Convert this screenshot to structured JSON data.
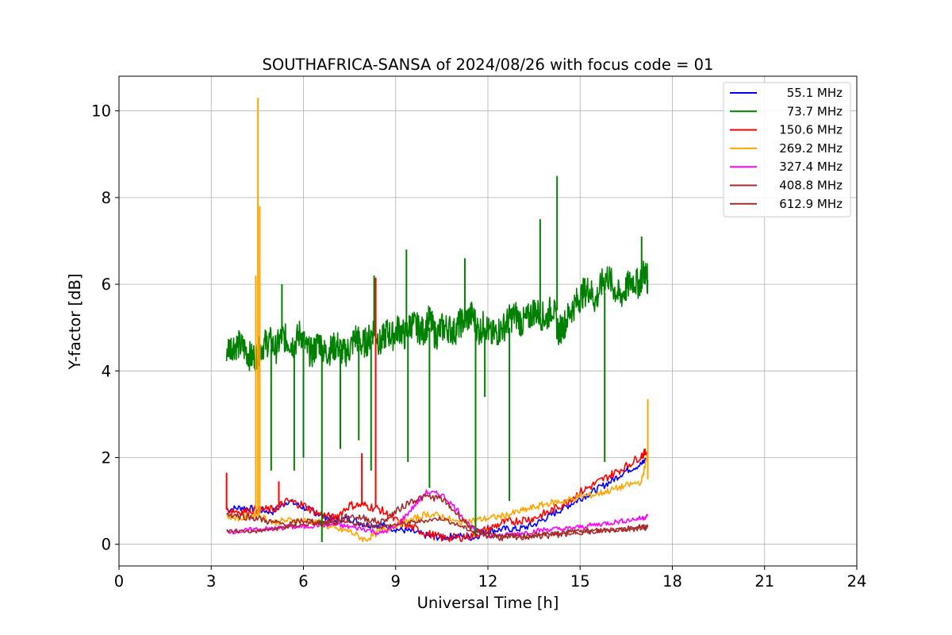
{
  "chart_data": {
    "type": "line",
    "title": "SOUTHAFRICA-SANSA of 2024/08/26 with focus code = 01",
    "xlabel": "Universal Time [h]",
    "ylabel": "Y-factor [dB]",
    "xlim": [
      0,
      24
    ],
    "ylim": [
      -0.5,
      10.8
    ],
    "xticks": [
      0,
      3,
      6,
      9,
      12,
      15,
      18,
      21,
      24
    ],
    "yticks": [
      0,
      2,
      4,
      6,
      8,
      10
    ],
    "grid": true,
    "legend_position": "top-right",
    "series": [
      {
        "name": "55.1 MHz",
        "color": "#0000ff",
        "x": [
          3.5,
          4.0,
          4.5,
          5.0,
          5.5,
          6.0,
          6.5,
          7.0,
          7.5,
          8.0,
          8.5,
          9.0,
          9.5,
          10.0,
          10.5,
          11.0,
          11.5,
          12.0,
          12.5,
          13.0,
          13.5,
          14.0,
          14.5,
          15.0,
          15.5,
          16.0,
          16.5,
          17.0,
          17.2
        ],
        "y": [
          0.8,
          0.85,
          0.8,
          0.75,
          1.0,
          0.85,
          0.7,
          0.55,
          0.6,
          0.45,
          0.45,
          0.35,
          0.3,
          0.2,
          0.15,
          0.2,
          0.15,
          0.3,
          0.35,
          0.35,
          0.45,
          0.65,
          0.85,
          1.05,
          1.25,
          1.45,
          1.7,
          1.85,
          2.0
        ]
      },
      {
        "name": "73.7 MHz",
        "color": "#008000",
        "x": [
          3.5,
          3.7,
          3.9,
          4.1,
          4.3,
          4.5,
          4.7,
          4.9,
          5.1,
          5.3,
          5.5,
          5.7,
          5.9,
          6.1,
          6.3,
          6.5,
          6.7,
          6.9,
          7.1,
          7.3,
          7.5,
          7.7,
          7.9,
          8.1,
          8.3,
          8.5,
          8.7,
          8.9,
          9.1,
          9.3,
          9.5,
          9.7,
          9.9,
          10.1,
          10.3,
          10.5,
          10.7,
          10.9,
          11.1,
          11.3,
          11.5,
          11.7,
          11.9,
          12.1,
          12.3,
          12.5,
          12.7,
          12.9,
          13.1,
          13.3,
          13.5,
          13.7,
          13.9,
          14.1,
          14.3,
          14.5,
          14.7,
          14.9,
          15.1,
          15.3,
          15.5,
          15.7,
          15.9,
          16.1,
          16.3,
          16.5,
          16.7,
          16.9,
          17.1,
          17.2
        ],
        "y": [
          4.5,
          4.6,
          4.6,
          4.5,
          4.3,
          4.4,
          4.6,
          4.7,
          4.5,
          4.8,
          4.7,
          4.6,
          4.9,
          4.5,
          4.4,
          4.7,
          4.4,
          4.5,
          4.6,
          4.4,
          4.5,
          4.8,
          4.6,
          4.7,
          5.0,
          4.6,
          4.9,
          4.8,
          5.0,
          4.8,
          5.1,
          5.0,
          4.9,
          5.2,
          4.8,
          5.0,
          5.0,
          4.9,
          5.1,
          5.2,
          5.3,
          4.9,
          5.1,
          4.8,
          4.9,
          5.0,
          5.2,
          5.3,
          5.1,
          5.2,
          5.4,
          5.3,
          5.2,
          5.5,
          4.9,
          5.1,
          5.4,
          5.6,
          5.8,
          5.9,
          5.6,
          6.0,
          6.2,
          5.9,
          5.7,
          5.9,
          6.1,
          6.0,
          6.3,
          6.1
        ]
      },
      {
        "name": "150.6 MHz",
        "color": "#ff0000",
        "x": [
          3.5,
          4.0,
          4.5,
          5.0,
          5.5,
          6.0,
          6.5,
          7.0,
          7.5,
          8.0,
          8.5,
          9.0,
          9.5,
          10.0,
          10.5,
          11.0,
          11.5,
          12.0,
          12.5,
          13.0,
          13.5,
          14.0,
          14.5,
          15.0,
          15.5,
          16.0,
          16.5,
          17.0,
          17.2
        ],
        "y": [
          0.8,
          0.75,
          0.8,
          0.8,
          1.0,
          0.9,
          0.7,
          0.6,
          0.9,
          0.9,
          0.8,
          0.55,
          0.4,
          0.25,
          0.15,
          0.15,
          0.2,
          0.35,
          0.5,
          0.55,
          0.6,
          0.75,
          0.95,
          1.2,
          1.4,
          1.6,
          1.8,
          2.05,
          2.15
        ]
      },
      {
        "name": "269.2 MHz",
        "color": "#ffa500",
        "x": [
          3.5,
          4.0,
          4.5,
          5.0,
          5.5,
          6.0,
          6.5,
          7.0,
          7.5,
          8.0,
          8.5,
          9.0,
          9.5,
          10.0,
          10.5,
          11.0,
          11.5,
          12.0,
          12.5,
          13.0,
          13.5,
          14.0,
          14.5,
          15.0,
          15.5,
          16.0,
          16.5,
          17.0,
          17.2
        ],
        "y": [
          0.65,
          0.6,
          0.7,
          0.5,
          0.55,
          0.55,
          0.5,
          0.35,
          0.3,
          0.1,
          0.3,
          0.45,
          0.55,
          0.7,
          0.65,
          0.5,
          0.55,
          0.6,
          0.65,
          0.75,
          0.85,
          0.95,
          1.0,
          1.1,
          1.15,
          1.25,
          1.35,
          1.45,
          2.1
        ]
      },
      {
        "name": "327.4 MHz",
        "color": "#ff00ff",
        "x": [
          3.5,
          4.0,
          4.5,
          5.0,
          5.5,
          6.0,
          6.5,
          7.0,
          7.5,
          8.0,
          8.5,
          9.0,
          9.5,
          10.0,
          10.5,
          11.0,
          11.5,
          12.0,
          12.5,
          13.0,
          13.5,
          14.0,
          14.5,
          15.0,
          15.5,
          16.0,
          16.5,
          17.0,
          17.2
        ],
        "y": [
          0.3,
          0.3,
          0.35,
          0.35,
          0.4,
          0.4,
          0.45,
          0.45,
          0.4,
          0.35,
          0.25,
          0.4,
          0.8,
          1.2,
          1.15,
          0.8,
          0.35,
          0.2,
          0.2,
          0.25,
          0.3,
          0.35,
          0.35,
          0.4,
          0.45,
          0.5,
          0.55,
          0.6,
          0.65
        ]
      },
      {
        "name": "408.8 MHz",
        "color": "#a52a2a",
        "x": [
          3.5,
          4.0,
          4.5,
          5.0,
          5.5,
          6.0,
          6.5,
          7.0,
          7.5,
          8.0,
          8.5,
          9.0,
          9.5,
          10.0,
          10.5,
          11.0,
          11.5,
          12.0,
          12.5,
          13.0,
          13.5,
          14.0,
          14.5,
          15.0,
          15.5,
          16.0,
          16.5,
          17.0,
          17.2
        ],
        "y": [
          0.3,
          0.3,
          0.3,
          0.35,
          0.4,
          0.45,
          0.5,
          0.5,
          0.5,
          0.45,
          0.4,
          0.45,
          0.5,
          0.55,
          0.6,
          0.45,
          0.3,
          0.25,
          0.2,
          0.2,
          0.2,
          0.25,
          0.25,
          0.3,
          0.3,
          0.3,
          0.35,
          0.4,
          0.4
        ]
      },
      {
        "name": "612.9 MHz",
        "color": "#a52a2a",
        "x": [
          3.5,
          4.0,
          4.5,
          5.0,
          5.5,
          6.0,
          6.5,
          7.0,
          7.5,
          8.0,
          8.5,
          9.0,
          9.5,
          10.0,
          10.5,
          11.0,
          11.5,
          12.0,
          12.5,
          13.0,
          13.5,
          14.0,
          14.5,
          15.0,
          15.5,
          16.0,
          16.5,
          17.0,
          17.2
        ],
        "y": [
          0.7,
          0.65,
          0.6,
          0.5,
          0.45,
          0.55,
          0.5,
          0.5,
          0.65,
          0.6,
          0.5,
          0.75,
          1.0,
          1.1,
          1.05,
          0.7,
          0.35,
          0.2,
          0.15,
          0.15,
          0.2,
          0.2,
          0.25,
          0.3,
          0.3,
          0.35,
          0.35,
          0.4,
          0.4
        ]
      }
    ],
    "spikes": [
      {
        "series": 3,
        "x": 4.45,
        "from": 0.7,
        "to": 6.2
      },
      {
        "series": 3,
        "x": 4.52,
        "from": 0.7,
        "to": 10.3
      },
      {
        "series": 3,
        "x": 4.58,
        "from": 0.7,
        "to": 7.8
      },
      {
        "series": 2,
        "x": 5.2,
        "from": 0.8,
        "to": 1.45
      },
      {
        "series": 2,
        "x": 7.9,
        "from": 0.9,
        "to": 2.1
      },
      {
        "series": 2,
        "x": 8.35,
        "from": 0.85,
        "to": 6.15
      },
      {
        "series": 2,
        "x": 3.5,
        "from": 0.8,
        "to": 1.65
      },
      {
        "series": 3,
        "x": 17.2,
        "from": 1.5,
        "to": 3.35
      },
      {
        "series": 1,
        "x": 4.95,
        "from": 4.5,
        "to": 1.7
      },
      {
        "series": 1,
        "x": 5.7,
        "from": 4.6,
        "to": 1.7
      },
      {
        "series": 1,
        "x": 6.0,
        "from": 4.5,
        "to": 2.0
      },
      {
        "series": 1,
        "x": 6.6,
        "from": 4.5,
        "to": 0.05
      },
      {
        "series": 1,
        "x": 7.2,
        "from": 4.5,
        "to": 2.2
      },
      {
        "series": 1,
        "x": 7.8,
        "from": 4.6,
        "to": 2.4
      },
      {
        "series": 1,
        "x": 8.2,
        "from": 4.7,
        "to": 1.7
      },
      {
        "series": 1,
        "x": 9.4,
        "from": 4.9,
        "to": 1.9
      },
      {
        "series": 1,
        "x": 10.1,
        "from": 5.0,
        "to": 1.3
      },
      {
        "series": 1,
        "x": 11.6,
        "from": 5.0,
        "to": 0.2
      },
      {
        "series": 1,
        "x": 11.9,
        "from": 5.0,
        "to": 3.4
      },
      {
        "series": 1,
        "x": 12.7,
        "from": 5.0,
        "to": 1.0
      },
      {
        "series": 1,
        "x": 15.8,
        "from": 5.8,
        "to": 1.9
      },
      {
        "series": 1,
        "x": 9.35,
        "from": 5.0,
        "to": 6.8
      },
      {
        "series": 1,
        "x": 11.25,
        "from": 5.2,
        "to": 6.6
      },
      {
        "series": 1,
        "x": 13.7,
        "from": 5.3,
        "to": 7.5
      },
      {
        "series": 1,
        "x": 14.25,
        "from": 5.4,
        "to": 8.5
      },
      {
        "series": 1,
        "x": 17.0,
        "from": 6.0,
        "to": 7.1
      },
      {
        "series": 1,
        "x": 8.3,
        "from": 4.8,
        "to": 6.2
      },
      {
        "series": 1,
        "x": 5.3,
        "from": 4.7,
        "to": 6.0
      }
    ]
  }
}
